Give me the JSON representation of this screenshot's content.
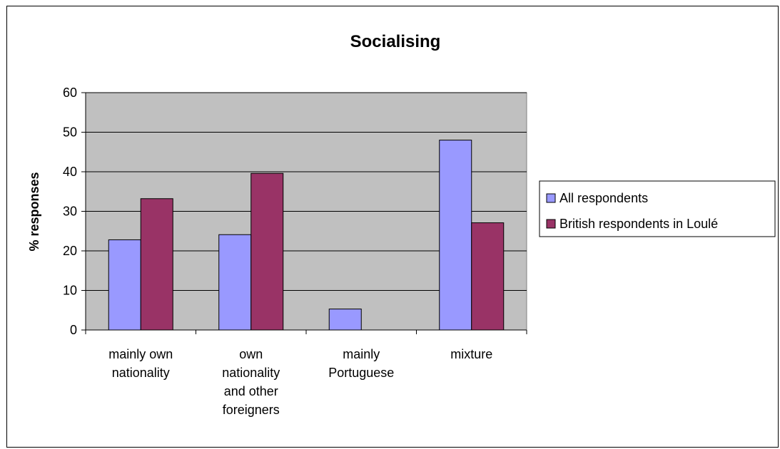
{
  "chart_data": {
    "type": "bar",
    "title": "Socialising",
    "xlabel": "",
    "ylabel": "% responses",
    "ylim": [
      0,
      60
    ],
    "yticks": [
      0,
      10,
      20,
      30,
      40,
      50,
      60
    ],
    "grid": true,
    "legend_position": "right",
    "categories": [
      [
        "mainly own",
        "nationality"
      ],
      [
        "own",
        "nationality",
        "and other",
        "foreigners"
      ],
      [
        "mainly",
        "Portuguese"
      ],
      [
        "mixture"
      ]
    ],
    "series": [
      {
        "name": "All respondents",
        "color": "#9999ff",
        "values": [
          22.8,
          24.1,
          5.3,
          48.0
        ]
      },
      {
        "name": "British respondents in Loulé",
        "color": "#993366",
        "values": [
          33.2,
          39.6,
          0,
          27.1
        ]
      }
    ],
    "plot_background": "#c0c0c0"
  }
}
